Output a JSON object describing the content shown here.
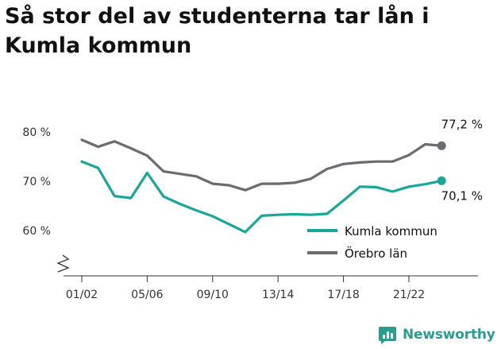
{
  "title_lines": [
    "Så stor del av studenterna tar lån i",
    "Kumla kommun"
  ],
  "brand": "Newsworthy",
  "colors": {
    "kumla": "#1aa698",
    "orebro": "#6b6b70",
    "axis": "#333333",
    "grid": "#d6d6d6",
    "brand": "#2a9d8f"
  },
  "chart_data": {
    "type": "line",
    "title": "Så stor del av studenterna tar lån i Kumla kommun",
    "x": [
      "01/02",
      "02/03",
      "03/04",
      "04/05",
      "05/06",
      "06/07",
      "07/08",
      "08/09",
      "09/10",
      "10/11",
      "11/12",
      "12/13",
      "13/14",
      "14/15",
      "15/16",
      "16/17",
      "17/18",
      "18/19",
      "19/20",
      "20/21",
      "21/22",
      "22/23",
      "23/24"
    ],
    "x_tick_labels": [
      "01/02",
      "05/06",
      "09/10",
      "13/14",
      "17/18",
      "21/22"
    ],
    "y_tick_labels": [
      "60 %",
      "70 %",
      "80 %"
    ],
    "ylim": [
      54,
      82
    ],
    "series": [
      {
        "name": "Kumla kommun",
        "color": "#1aa698",
        "values": [
          74.0,
          72.7,
          67.0,
          66.6,
          71.7,
          66.9,
          65.4,
          64.1,
          62.9,
          61.3,
          59.7,
          63.0,
          63.2,
          63.3,
          63.2,
          63.4,
          66.1,
          68.9,
          68.8,
          67.9,
          68.9,
          69.4,
          70.1
        ]
      },
      {
        "name": "Örebro län",
        "color": "#6b6b70",
        "values": [
          78.4,
          77.0,
          78.1,
          76.7,
          75.2,
          72.0,
          71.5,
          71.0,
          69.5,
          69.2,
          68.2,
          69.5,
          69.5,
          69.7,
          70.5,
          72.5,
          73.5,
          73.8,
          74.0,
          74.0,
          75.3,
          77.5,
          77.2
        ]
      }
    ],
    "end_labels": {
      "Kumla kommun": "70,1 %",
      "Örebro län": "77,2 %"
    },
    "legend": "bottom-right",
    "grid": false
  }
}
